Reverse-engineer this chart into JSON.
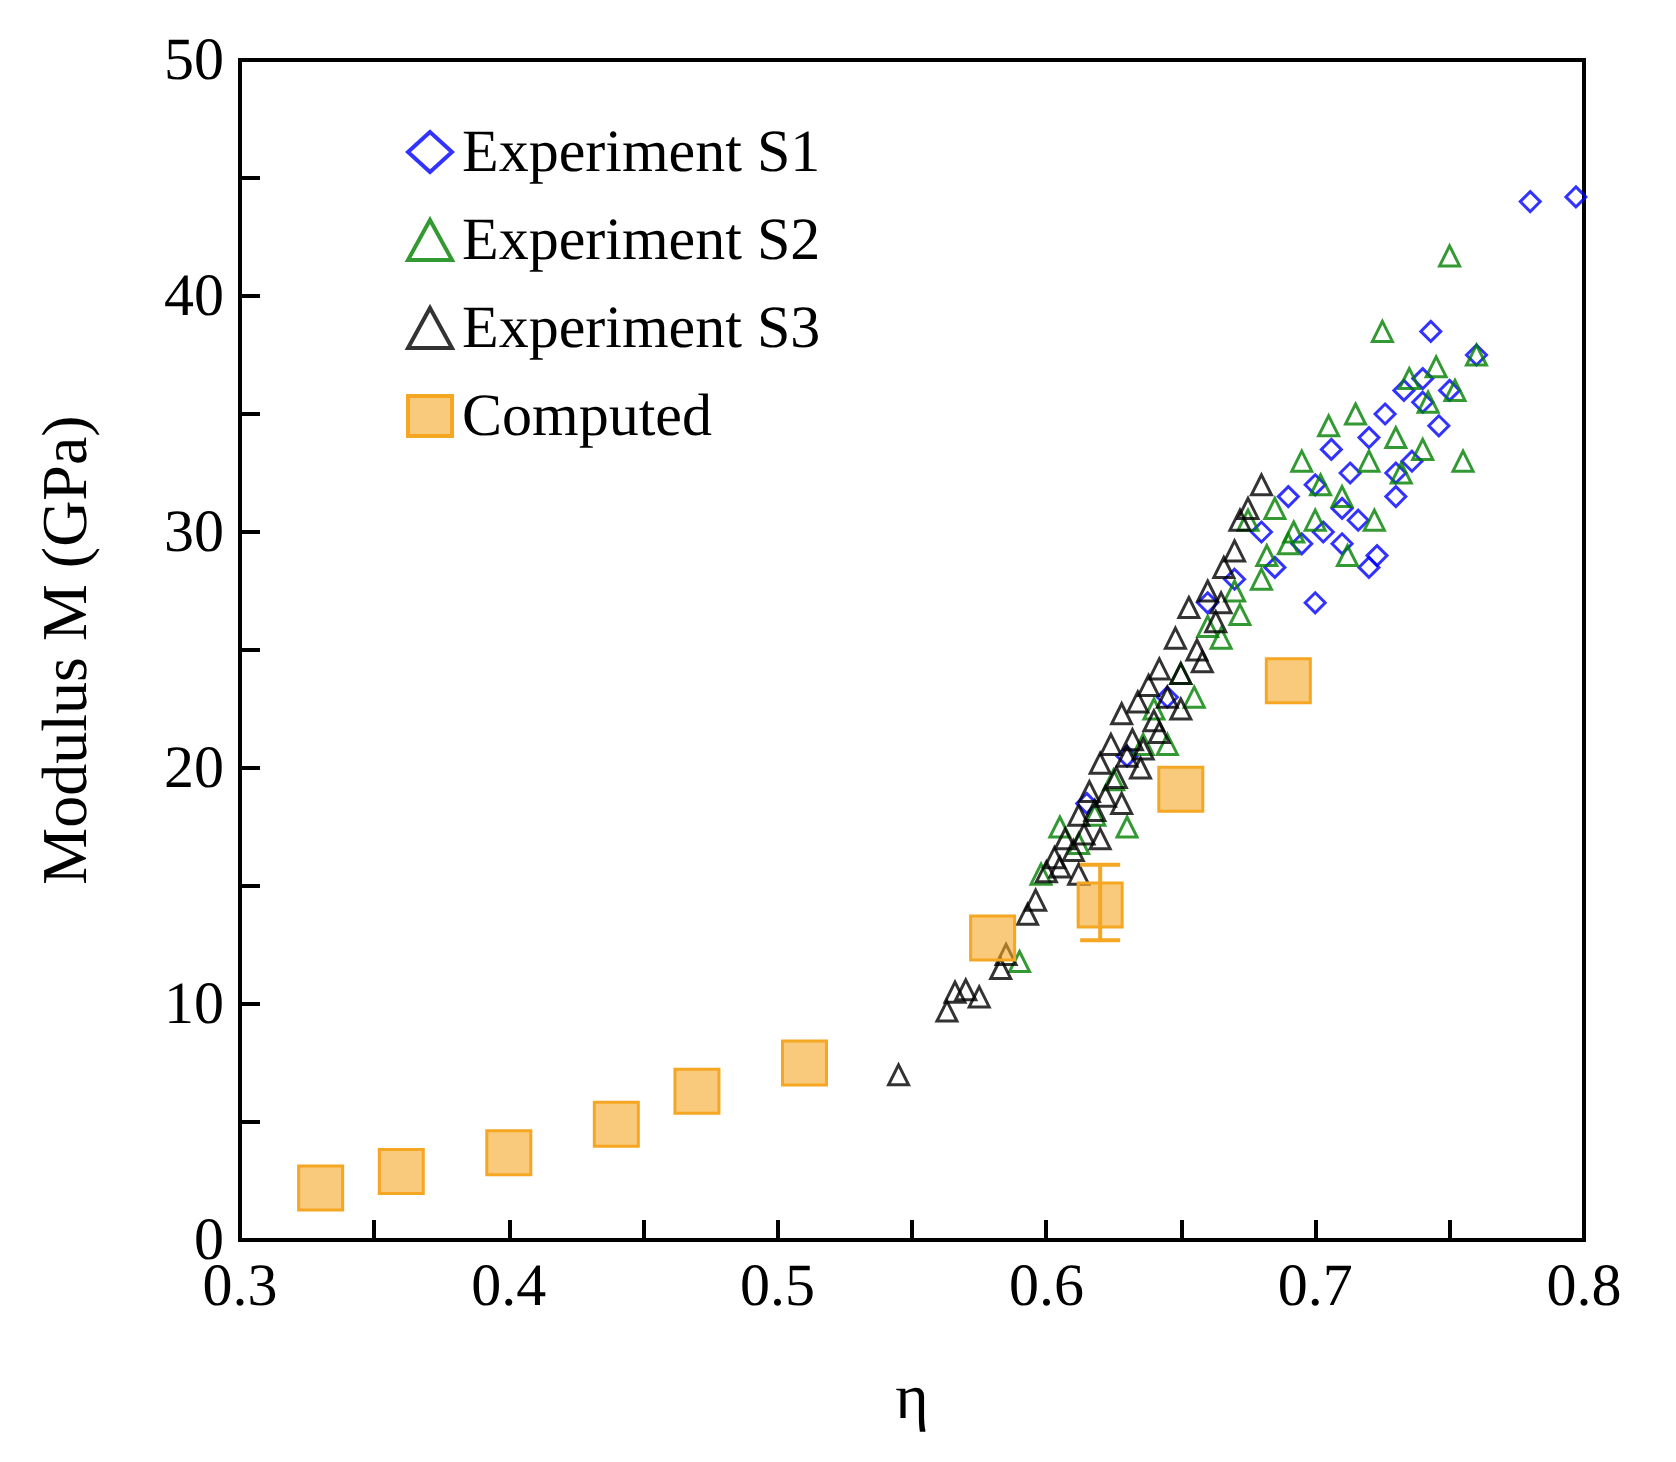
{
  "chart_data": {
    "type": "scatter",
    "xlabel": "η",
    "ylabel": "Modulus M (GPa)",
    "xlim": [
      0.3,
      0.8
    ],
    "xticks": [
      0.3,
      {
        "value": 0.35,
        "label": null
      },
      0.4,
      {
        "value": 0.45,
        "label": null
      },
      0.5,
      {
        "value": 0.55,
        "label": null
      },
      0.6,
      {
        "value": 0.65,
        "label": null
      },
      0.7,
      {
        "value": 0.75,
        "label": null
      },
      0.8
    ],
    "ylim": [
      0,
      50
    ],
    "yticks": [
      0,
      {
        "value": 5,
        "label": null
      },
      10,
      {
        "value": 15,
        "label": null
      },
      20,
      {
        "value": 25,
        "label": null
      },
      30,
      {
        "value": 35,
        "label": null
      },
      40,
      {
        "value": 45,
        "label": null
      },
      50
    ],
    "grid": false,
    "legend": "top left",
    "series": [
      {
        "name": "Experiment S1",
        "color": "#0000ff",
        "marker": "diamond",
        "x": [
          0.615,
          0.63,
          0.645,
          0.66,
          0.67,
          0.68,
          0.685,
          0.69,
          0.695,
          0.7,
          0.703,
          0.706,
          0.71,
          0.713,
          0.716,
          0.72,
          0.723,
          0.726,
          0.73,
          0.733,
          0.736,
          0.74,
          0.743,
          0.746,
          0.75,
          0.76,
          0.78,
          0.797,
          0.7,
          0.71,
          0.72,
          0.73,
          0.74
        ],
        "values": [
          18.5,
          20.5,
          23.0,
          27.0,
          28.0,
          30.0,
          28.5,
          31.5,
          29.5,
          32.0,
          30.0,
          33.5,
          31.0,
          32.5,
          30.5,
          34.0,
          29.0,
          35.0,
          31.5,
          36.0,
          33.0,
          35.5,
          38.5,
          34.5,
          36.0,
          37.5,
          44.0,
          44.2,
          27.0,
          29.5,
          28.5,
          32.5,
          36.5
        ]
      },
      {
        "name": "Experiment S2",
        "color": "#008000",
        "marker": "triangle",
        "x": [
          0.59,
          0.598,
          0.605,
          0.612,
          0.618,
          0.625,
          0.63,
          0.636,
          0.64,
          0.645,
          0.65,
          0.655,
          0.66,
          0.665,
          0.67,
          0.675,
          0.68,
          0.685,
          0.69,
          0.695,
          0.7,
          0.705,
          0.71,
          0.715,
          0.72,
          0.725,
          0.73,
          0.735,
          0.74,
          0.745,
          0.75,
          0.755,
          0.76,
          0.672,
          0.682,
          0.692,
          0.702,
          0.712,
          0.722,
          0.732,
          0.742,
          0.752
        ],
        "values": [
          11.8,
          15.5,
          17.5,
          16.8,
          18.0,
          19.5,
          17.5,
          21.0,
          22.5,
          21.0,
          24.0,
          23.0,
          26.0,
          25.5,
          27.5,
          30.5,
          28.0,
          31.0,
          29.5,
          33.0,
          30.5,
          34.5,
          31.5,
          35.0,
          33.0,
          38.5,
          34.0,
          36.5,
          33.5,
          37.0,
          41.7,
          33.0,
          37.5,
          26.5,
          29.0,
          30.0,
          32.0,
          29.0,
          30.5,
          32.5,
          35.5,
          36.0
        ]
      },
      {
        "name": "Experiment S3",
        "color": "#000000",
        "marker": "triangle",
        "x": [
          0.545,
          0.563,
          0.566,
          0.57,
          0.575,
          0.583,
          0.585,
          0.593,
          0.596,
          0.6,
          0.603,
          0.605,
          0.607,
          0.61,
          0.612,
          0.614,
          0.616,
          0.618,
          0.62,
          0.622,
          0.624,
          0.626,
          0.628,
          0.63,
          0.632,
          0.634,
          0.636,
          0.638,
          0.64,
          0.642,
          0.645,
          0.648,
          0.65,
          0.653,
          0.656,
          0.66,
          0.663,
          0.666,
          0.67,
          0.675,
          0.68,
          0.612,
          0.62,
          0.628,
          0.635,
          0.642,
          0.65,
          0.658,
          0.665,
          0.672
        ],
        "values": [
          7.0,
          9.7,
          10.5,
          10.6,
          10.3,
          11.5,
          12.1,
          13.8,
          14.4,
          15.6,
          16.2,
          15.8,
          17.0,
          16.5,
          18.0,
          17.2,
          19.0,
          18.2,
          20.2,
          18.8,
          21.0,
          19.6,
          22.3,
          20.5,
          21.2,
          22.8,
          20.8,
          23.5,
          22.0,
          24.2,
          23.0,
          25.5,
          24.0,
          26.8,
          25.0,
          27.5,
          26.2,
          28.5,
          29.2,
          31.0,
          32.0,
          15.5,
          17.0,
          18.5,
          20.0,
          21.5,
          22.5,
          24.5,
          27.0,
          30.5
        ]
      },
      {
        "name": "Computed",
        "color": "#f5a623",
        "marker": "square",
        "x": [
          0.33,
          0.36,
          0.4,
          0.44,
          0.47,
          0.51,
          0.58,
          0.62,
          0.65,
          0.69
        ],
        "values": [
          2.2,
          2.9,
          3.7,
          4.9,
          6.3,
          7.5,
          12.8,
          14.2,
          19.1,
          23.7
        ],
        "errors": [
          null,
          null,
          null,
          null,
          null,
          null,
          null,
          [
            12.7,
            15.9
          ],
          null,
          null
        ]
      }
    ]
  }
}
